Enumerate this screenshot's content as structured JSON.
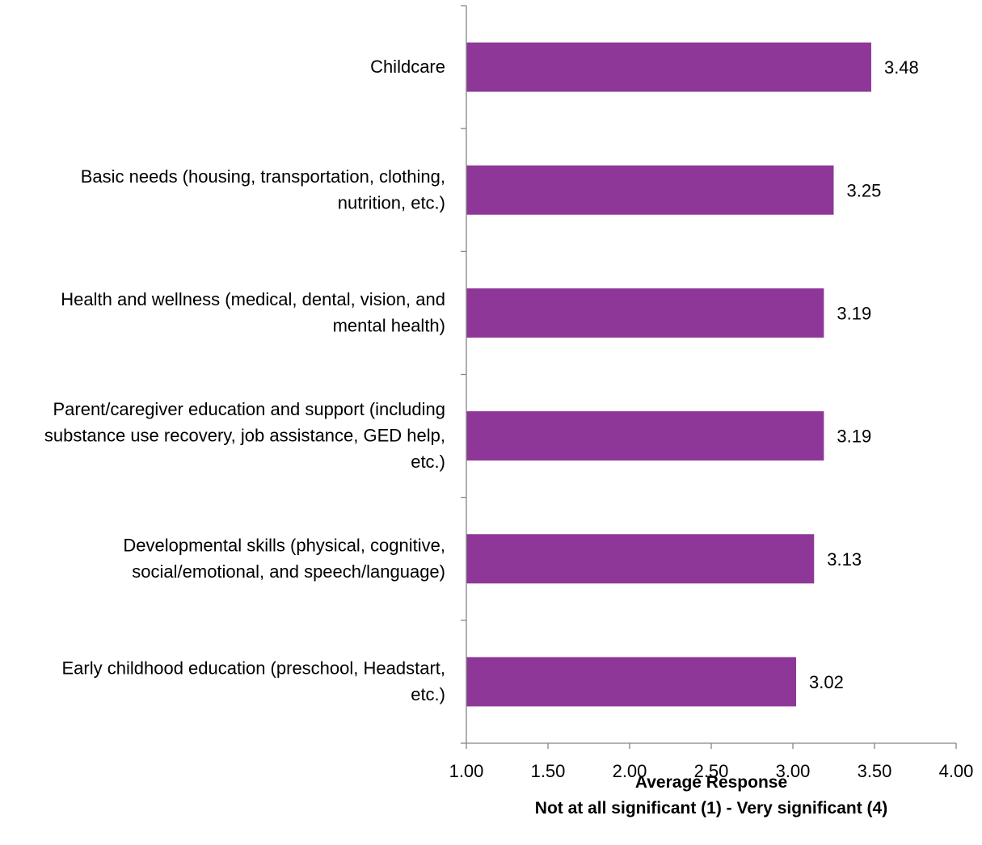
{
  "chart_data": {
    "type": "bar",
    "orientation": "horizontal",
    "categories": [
      "Childcare",
      "Basic needs (housing, transportation, clothing, nutrition, etc.)",
      "Health and wellness (medical, dental, vision, and mental health)",
      "Parent/caregiver education and support (including substance use recovery, job assistance, GED help, etc.)",
      "Developmental skills (physical, cognitive, social/emotional, and speech/language)",
      "Early childhood education (preschool, Headstart, etc.)"
    ],
    "category_lines": [
      [
        "Childcare"
      ],
      [
        "Basic needs (housing, transportation, clothing,",
        "nutrition, etc.)"
      ],
      [
        "Health and wellness (medical, dental, vision, and",
        "mental health)"
      ],
      [
        "Parent/caregiver education and support (including",
        "substance use recovery, job assistance, GED help,",
        "etc.)"
      ],
      [
        "Developmental skills (physical, cognitive,",
        "social/emotional, and speech/language)"
      ],
      [
        "Early childhood education (preschool, Headstart,",
        "etc.)"
      ]
    ],
    "values": [
      3.48,
      3.25,
      3.19,
      3.19,
      3.13,
      3.02
    ],
    "value_labels": [
      "3.48",
      "3.25",
      "3.19",
      "3.19",
      "3.13",
      "3.02"
    ],
    "xlim": [
      1.0,
      4.0
    ],
    "xticks": [
      "1.00",
      "1.50",
      "2.00",
      "2.50",
      "3.00",
      "3.50",
      "4.00"
    ],
    "xtick_values": [
      1.0,
      1.5,
      2.0,
      2.5,
      3.0,
      3.5,
      4.0
    ],
    "xlabel": "Average Response",
    "xlabel_line2": "Not at all significant (1) - Very significant (4)",
    "ylabel": "",
    "title": "",
    "grid": false,
    "legend": "none",
    "colors": {
      "bar": "#8E3798",
      "axis": "#868686",
      "text": "#000000"
    }
  }
}
